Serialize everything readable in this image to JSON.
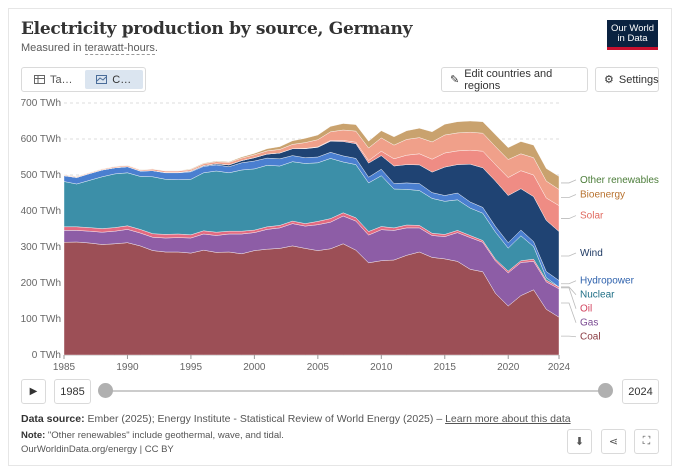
{
  "header": {
    "title": "Electricity production by source, Germany",
    "subtitle_prefix": "Measured in ",
    "subtitle_unit": "terawatt-hours",
    "subtitle_suffix": ".",
    "logo_line1": "Our World",
    "logo_line2": "in Data"
  },
  "tabs": [
    {
      "label": "Ta…",
      "icon": "table-icon"
    },
    {
      "label": "C…",
      "icon": "chart-icon"
    }
  ],
  "toolbar": {
    "edit_label": "Edit countries and regions",
    "settings_label": "Settings"
  },
  "timeline": {
    "start_year": "1985",
    "end_year": "2024"
  },
  "footer": {
    "source_label": "Data source:",
    "source_text": " Ember (2025); Energy Institute - Statistical Review of World Energy (2025) – ",
    "source_link": "Learn more about this data",
    "note_label": "Note:",
    "note_text": " \"Other renewables\" include geothermal, wave, and tidal.",
    "credit": "OurWorldinData.org/energy | CC BY"
  },
  "colors": {
    "coal": "#9c4f56",
    "gas": "#8d5da6",
    "oil": "#e36a80",
    "nuclear": "#3c8fa8",
    "hydropower": "#4a7fd0",
    "wind": "#1f4373",
    "solar": "#ef8c84",
    "bioenergy": "#f0a08a",
    "other": "#c9a26e"
  },
  "chart_data": {
    "type": "area",
    "stacked": true,
    "x": [
      1985,
      1986,
      1987,
      1988,
      1989,
      1990,
      1991,
      1992,
      1993,
      1994,
      1995,
      1996,
      1997,
      1998,
      1999,
      2000,
      2001,
      2002,
      2003,
      2004,
      2005,
      2006,
      2007,
      2008,
      2009,
      2010,
      2011,
      2012,
      2013,
      2014,
      2015,
      2016,
      2017,
      2018,
      2019,
      2020,
      2021,
      2022,
      2023,
      2024
    ],
    "ylim": [
      0,
      700
    ],
    "yticks": [
      0,
      100,
      200,
      300,
      400,
      500,
      600,
      700
    ],
    "ytick_labels": [
      "0 TWh",
      "100 TWh",
      "200 TWh",
      "300 TWh",
      "400 TWh",
      "500 TWh",
      "600 TWh",
      "700 TWh"
    ],
    "xticks": [
      1985,
      1990,
      1995,
      2000,
      2005,
      2010,
      2015,
      2020,
      2024
    ],
    "series": [
      {
        "name": "Coal",
        "color": "#9c4f56",
        "values": [
          313,
          314,
          311,
          307,
          309,
          312,
          303,
          290,
          286,
          286,
          283,
          291,
          285,
          286,
          281,
          290,
          294,
          296,
          303,
          296,
          290,
          295,
          309,
          291,
          256,
          262,
          264,
          277,
          286,
          271,
          267,
          260,
          238,
          231,
          171,
          136,
          165,
          181,
          127,
          105
        ]
      },
      {
        "name": "Gas",
        "color": "#8d5da6",
        "values": [
          33,
          32,
          33,
          34,
          35,
          37,
          36,
          37,
          39,
          40,
          42,
          45,
          47,
          50,
          55,
          50,
          55,
          57,
          62,
          62,
          72,
          74,
          77,
          81,
          77,
          86,
          82,
          76,
          67,
          61,
          62,
          80,
          88,
          82,
          90,
          92,
          92,
          79,
          76,
          79
        ]
      },
      {
        "name": "Oil",
        "color": "#e36a80",
        "values": [
          10,
          10,
          10,
          10,
          10,
          10,
          10,
          10,
          10,
          10,
          9,
          9,
          9,
          8,
          8,
          7,
          7,
          7,
          7,
          7,
          9,
          10,
          9,
          9,
          10,
          9,
          7,
          8,
          7,
          6,
          6,
          6,
          6,
          5,
          5,
          5,
          5,
          6,
          5,
          5
        ]
      },
      {
        "name": "Nuclear",
        "color": "#3c8fa8",
        "values": [
          126,
          119,
          131,
          144,
          149,
          147,
          147,
          158,
          153,
          151,
          154,
          161,
          170,
          162,
          170,
          170,
          171,
          165,
          165,
          167,
          163,
          167,
          141,
          148,
          135,
          141,
          108,
          99,
          97,
          97,
          92,
          85,
          76,
          76,
          75,
          64,
          69,
          35,
          7,
          0
        ]
      },
      {
        "name": "Hydropower",
        "color": "#4a7fd0",
        "values": [
          16,
          18,
          19,
          19,
          17,
          17,
          15,
          17,
          18,
          19,
          21,
          18,
          17,
          17,
          20,
          22,
          20,
          20,
          17,
          16,
          16,
          17,
          17,
          17,
          16,
          18,
          15,
          18,
          19,
          16,
          16,
          19,
          17,
          16,
          16,
          15,
          16,
          14,
          17,
          18
        ]
      },
      {
        "name": "Wind",
        "color": "#1f4373",
        "values": [
          0,
          0,
          0,
          0,
          0,
          0,
          0,
          0,
          1,
          1,
          2,
          2,
          3,
          5,
          6,
          9,
          11,
          16,
          19,
          25,
          27,
          31,
          40,
          41,
          39,
          38,
          49,
          51,
          52,
          57,
          79,
          79,
          105,
          110,
          126,
          131,
          115,
          125,
          142,
          136
        ]
      },
      {
        "name": "Solar",
        "color": "#ef8c84",
        "values": [
          0,
          0,
          0,
          0,
          0,
          0,
          0,
          0,
          0,
          0,
          0,
          0,
          0,
          0,
          0,
          0,
          0,
          0,
          0,
          1,
          1,
          2,
          3,
          4,
          7,
          12,
          20,
          26,
          31,
          36,
          39,
          38,
          39,
          46,
          46,
          50,
          50,
          60,
          62,
          72
        ]
      },
      {
        "name": "Bioenergy",
        "color": "#f0a08a",
        "values": [
          2,
          2,
          2,
          2,
          3,
          3,
          3,
          4,
          4,
          4,
          4,
          5,
          6,
          7,
          7,
          8,
          9,
          10,
          12,
          16,
          20,
          24,
          29,
          31,
          35,
          37,
          38,
          44,
          45,
          48,
          50,
          50,
          50,
          50,
          50,
          50,
          47,
          48,
          47,
          45
        ]
      },
      {
        "name": "Other renewables",
        "color": "#c9a26e",
        "values": [
          1,
          1,
          1,
          1,
          1,
          1,
          1,
          1,
          1,
          1,
          2,
          2,
          2,
          2,
          3,
          4,
          6,
          8,
          10,
          12,
          13,
          15,
          18,
          18,
          19,
          20,
          23,
          24,
          26,
          28,
          30,
          31,
          31,
          32,
          33,
          33,
          34,
          35,
          35,
          36
        ]
      }
    ]
  }
}
